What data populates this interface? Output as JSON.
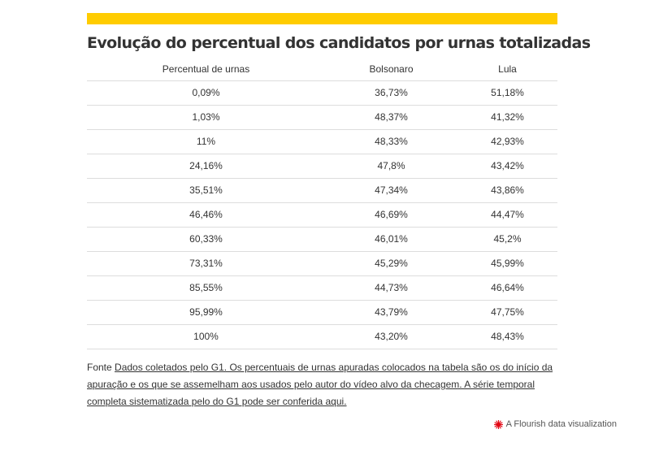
{
  "title": "Evolução do percentual dos candidatos por urnas totalizadas",
  "accent_color": "#ffcc00",
  "chart_data": {
    "type": "table",
    "title": "Evolução do percentual dos candidatos por urnas totalizadas",
    "columns": [
      "Percentual de urnas",
      "Bolsonaro",
      "Lula"
    ],
    "rows": [
      [
        "0,09%",
        "36,73%",
        "51,18%"
      ],
      [
        "1,03%",
        "48,37%",
        "41,32%"
      ],
      [
        "11%",
        "48,33%",
        "42,93%"
      ],
      [
        "24,16%",
        "47,8%",
        "43,42%"
      ],
      [
        "35,51%",
        "47,34%",
        "43,86%"
      ],
      [
        "46,46%",
        "46,69%",
        "44,47%"
      ],
      [
        "60,33%",
        "46,01%",
        "45,2%"
      ],
      [
        "73,31%",
        "45,29%",
        "45,99%"
      ],
      [
        "85,55%",
        "44,73%",
        "46,64%"
      ],
      [
        "95,99%",
        "43,79%",
        "47,75%"
      ],
      [
        "100%",
        "43,20%",
        "48,43%"
      ]
    ]
  },
  "source": {
    "prefix": "Fonte ",
    "link_text": "Dados coletados pelo G1. Os percentuais de urnas apuradas colocados na tabela são os do início da apuração e os que se assemelham aos usados pelo autor do vídeo alvo da checagem. A série temporal completa sistematizada pelo do G1 pode ser conferida aqui."
  },
  "footer": {
    "icon": "flourish-logo-icon",
    "icon_color": "#e30613",
    "label": "A Flourish data visualization"
  }
}
